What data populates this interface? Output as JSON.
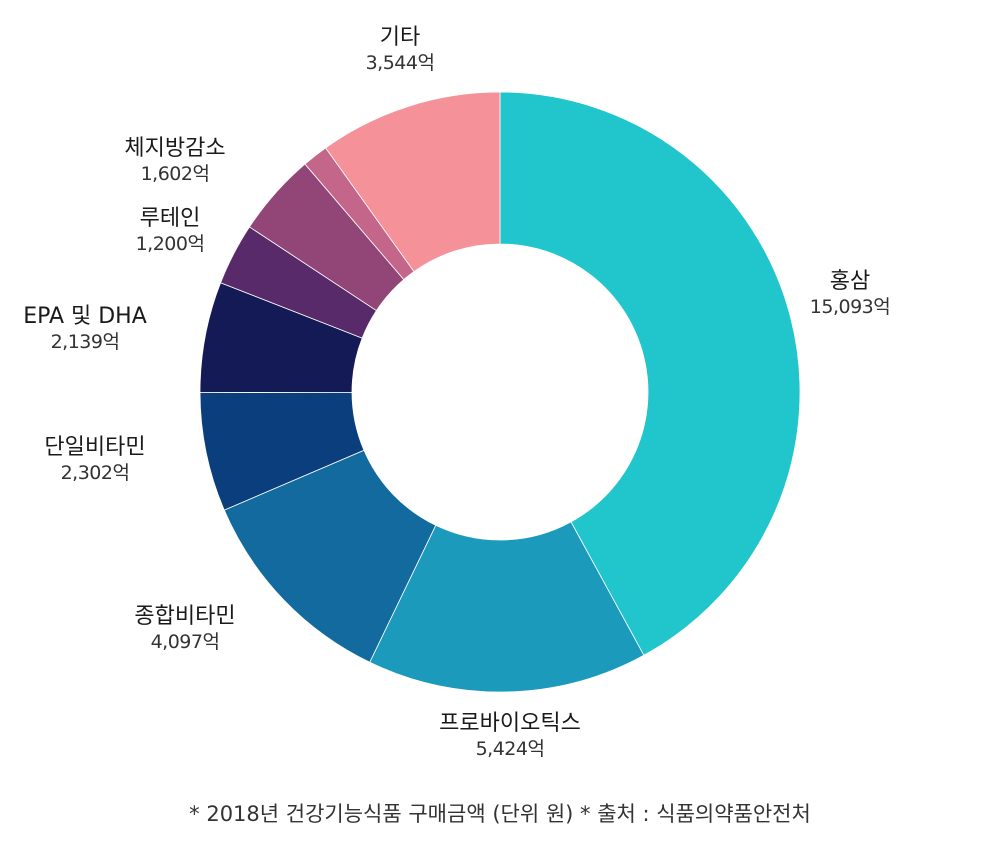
{
  "chart_data": {
    "type": "pie",
    "donut": true,
    "unit": "억",
    "slices": [
      {
        "label": "홍삼",
        "value": 15093,
        "value_text": "15,093억",
        "color": "#21C5CC"
      },
      {
        "label": "프로바이오틱스",
        "value": 5424,
        "value_text": "5,424억",
        "color": "#1B9ABC"
      },
      {
        "label": "종합비타민",
        "value": 4097,
        "value_text": "4,097억",
        "color": "#136A9F"
      },
      {
        "label": "단일비타민",
        "value": 2302,
        "value_text": "2,302억",
        "color": "#0B3E7C"
      },
      {
        "label": "EPA 및 DHA",
        "value": 2139,
        "value_text": "2,139억",
        "color": "#141A55"
      },
      {
        "label": "루테인",
        "value": 1200,
        "value_text": "1,200억",
        "color": "#582A6A"
      },
      {
        "label": "체지방감소",
        "value": 1602,
        "value_text": "1,602억",
        "color": "#924577"
      },
      {
        "label": "",
        "value": 500,
        "value_text": "",
        "color": "#C4668A"
      },
      {
        "label": "기타",
        "value": 3544,
        "value_text": "3,544억",
        "color": "#F59198"
      }
    ]
  },
  "footnote": "* 2018년 건강기능식품 구매금액 (단위 원) * 출처 : 식품의약품안전처"
}
